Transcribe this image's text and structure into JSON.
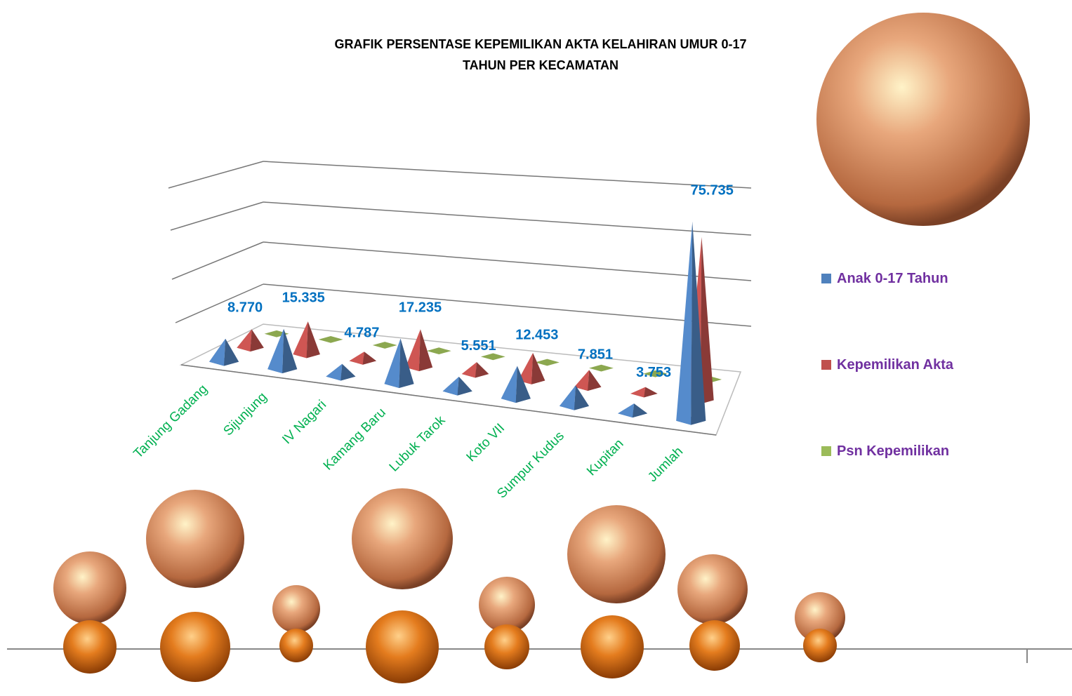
{
  "chart_data": {
    "type": "pyramid3d",
    "title": "GRAFIK PERSENTASE KEPEMILIKAN AKTA KELAHIRAN UMUR 0-17 TAHUN PER KECAMATAN",
    "categories": [
      "Tanjung Gadang",
      "Sijunjung",
      "IV Nagari",
      "Kamang Baru",
      "Lubuk Tarok",
      "Koto VII",
      "Sumpur Kudus",
      "Kupitan",
      "Jumlah"
    ],
    "series": [
      {
        "name": "Anak 0-17 Tahun",
        "color": "#4f81bd",
        "values": [
          8770,
          15335,
          4787,
          17235,
          5551,
          12453,
          7851,
          3753,
          75735
        ],
        "value_labels": [
          "8.770",
          "15.335",
          "4.787",
          "17.235",
          "5.551",
          "12.453",
          "7.851",
          "3.753",
          "75.735"
        ]
      },
      {
        "name": "Kepemilikan Akta",
        "color": "#c0504d",
        "values": [
          7000,
          12500,
          3500,
          14500,
          4500,
          10500,
          6500,
          2500,
          62000
        ]
      },
      {
        "name": "Psn Kepemilikan",
        "color": "#9bbb59",
        "values": [
          80,
          82,
          75,
          84,
          81,
          84,
          83,
          67,
          82
        ]
      }
    ],
    "ylim": [
      0,
      80000
    ],
    "grid": true
  }
}
